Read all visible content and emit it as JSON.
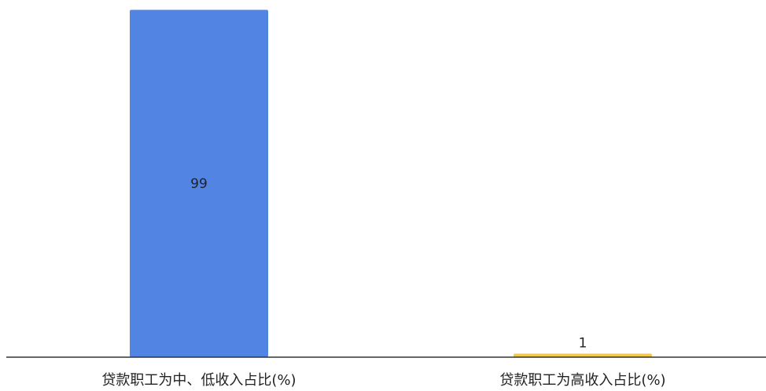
{
  "chart_data": {
    "type": "bar",
    "categories": [
      "贷款职工为中、低收入占比(%)",
      "贷款职工为高收入占比(%)"
    ],
    "values": [
      99,
      1
    ],
    "colors": [
      "#5284e3",
      "#f2c94c"
    ],
    "ylim": [
      0,
      100
    ],
    "grid": false,
    "legend": "none",
    "data_labels": true
  }
}
